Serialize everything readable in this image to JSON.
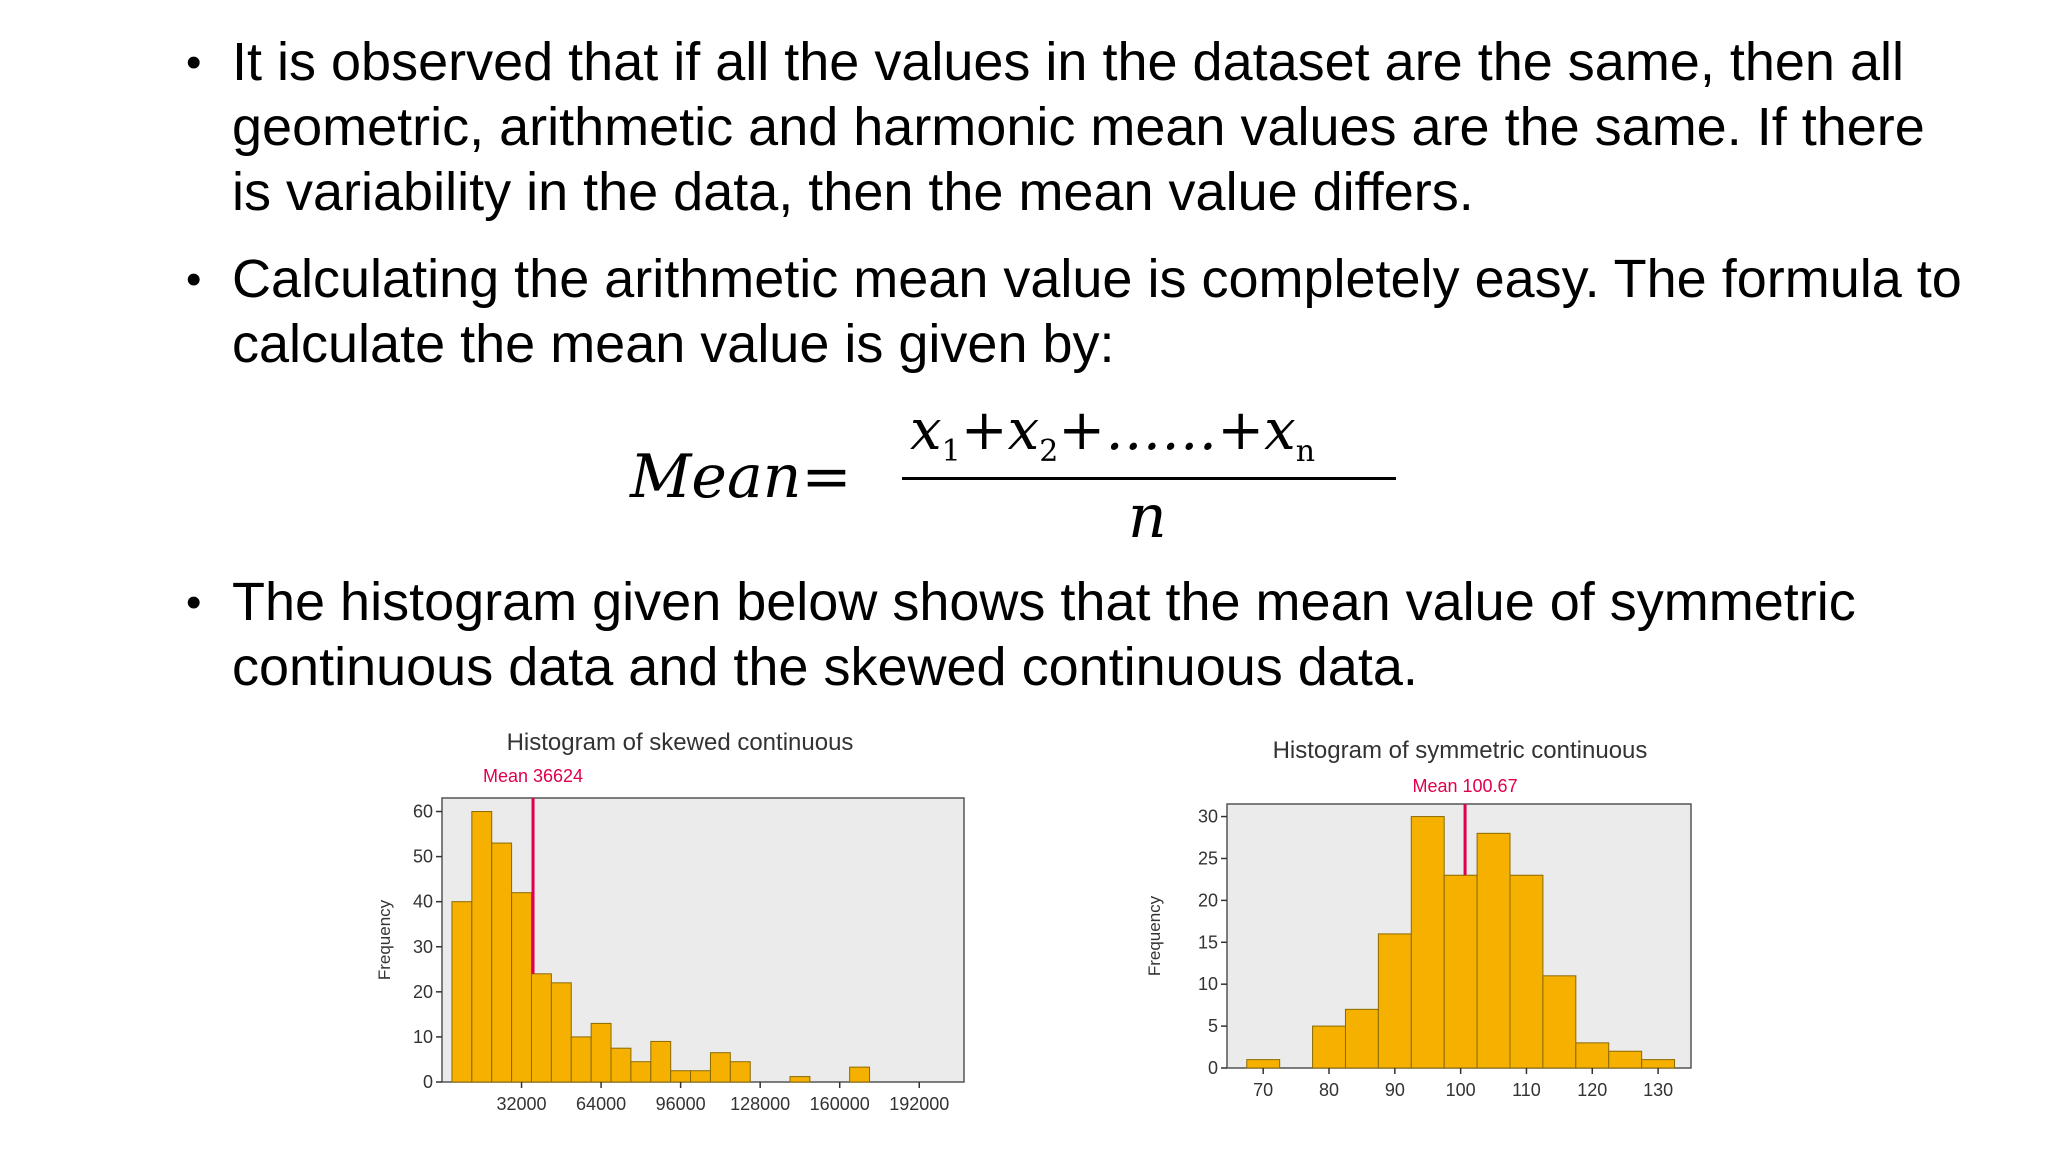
{
  "bullets": [
    "It is observed that if all the values in the dataset are the same, then all geometric, arithmetic and harmonic mean values are the same. If there is variability in the data, then the mean value differs.",
    "Calculating the arithmetic mean value is completely easy. The formula to calculate the mean value is given by:",
    "The histogram given below shows that the mean value of symmetric continuous data and the skewed continuous data."
  ],
  "formula": {
    "lhs": "Mean=",
    "numerator_terms": [
      "x",
      "1",
      "+x",
      "2",
      "+……+x",
      "n"
    ],
    "denominator": "n"
  },
  "chart_data": [
    {
      "type": "bar",
      "title": "Histogram of skewed continuous",
      "ylabel": "Frequency",
      "xlabel": "",
      "x_ticks": [
        "32000",
        "64000",
        "96000",
        "128000",
        "160000",
        "192000"
      ],
      "y_ticks": [
        "0",
        "10",
        "20",
        "30",
        "40",
        "50",
        "60"
      ],
      "xlim": [
        0,
        210000
      ],
      "ylim": [
        0,
        63
      ],
      "bin_width": 8000,
      "bin_starts": [
        4000,
        12000,
        20000,
        28000,
        36000,
        44000,
        52000,
        60000,
        68000,
        76000,
        84000,
        92000,
        100000,
        108000,
        116000,
        124000,
        132000,
        140000,
        148000,
        156000,
        164000,
        172000,
        180000
      ],
      "values": [
        40,
        60,
        53,
        42,
        24,
        22,
        10,
        13,
        7.5,
        4.5,
        9,
        2.5,
        2.5,
        6.5,
        4.5,
        0,
        0,
        1.2,
        0,
        0,
        3.3,
        0,
        0
      ],
      "mean_label": "Mean 36624",
      "mean_value": 36624,
      "bar_color": "#f5b000",
      "mean_color": "#e0004d"
    },
    {
      "type": "bar",
      "title": "Histogram of symmetric continuous",
      "ylabel": "Frequency",
      "xlabel": "",
      "x_ticks": [
        "70",
        "80",
        "90",
        "100",
        "110",
        "120",
        "130"
      ],
      "y_ticks": [
        "0",
        "5",
        "10",
        "15",
        "20",
        "25",
        "30"
      ],
      "xlim": [
        64.5,
        135
      ],
      "ylim": [
        0,
        31.5
      ],
      "bin_width": 5,
      "bin_starts": [
        67.5,
        72.5,
        77.5,
        82.5,
        87.5,
        92.5,
        97.5,
        102.5,
        107.5,
        112.5,
        117.5,
        122.5,
        127.5
      ],
      "values": [
        1,
        0,
        5,
        7,
        16,
        30,
        23,
        28,
        23,
        11,
        3,
        2,
        1
      ],
      "mean_label": "Mean 100.67",
      "mean_value": 100.67,
      "bar_color": "#f5b000",
      "mean_color": "#e0004d"
    }
  ]
}
